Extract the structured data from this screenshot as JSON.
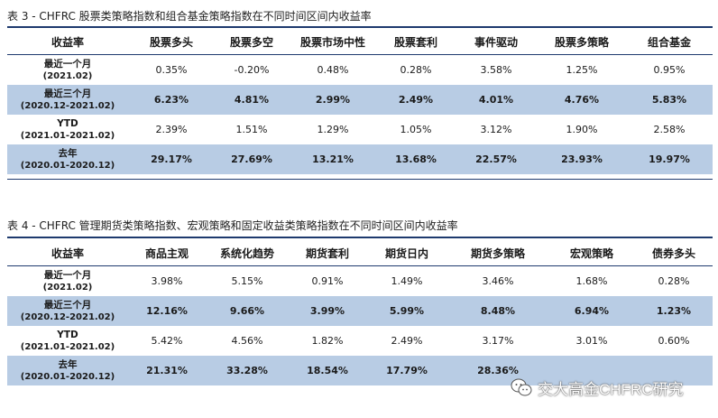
{
  "table1": {
    "caption": "表 3  - CHFRC 股票类策略指数和组合基金策略指数在不同时间区间内收益率",
    "headers": [
      "收益率",
      "股票多头",
      "股票多空",
      "股票市场中性",
      "股票套利",
      "事件驱动",
      "股票多策略",
      "组合基金"
    ],
    "rows": [
      {
        "label": "最近一个月",
        "sub": "(2021.02)",
        "values": [
          "0.35%",
          "-0.20%",
          "0.48%",
          "0.28%",
          "3.58%",
          "1.25%",
          "0.95%"
        ]
      },
      {
        "label": "最近三个月",
        "sub": "(2020.12-2021.02)",
        "values": [
          "6.23%",
          "4.81%",
          "2.99%",
          "2.49%",
          "4.01%",
          "4.76%",
          "5.83%"
        ]
      },
      {
        "label": "YTD",
        "sub": "(2021.01-2021.02)",
        "values": [
          "2.39%",
          "1.51%",
          "1.29%",
          "1.05%",
          "3.12%",
          "1.90%",
          "2.58%"
        ]
      },
      {
        "label": "去年",
        "sub": "(2020.01-2020.12)",
        "values": [
          "29.17%",
          "27.69%",
          "13.21%",
          "13.68%",
          "22.57%",
          "23.93%",
          "19.97%"
        ]
      }
    ]
  },
  "table2": {
    "caption": "表 4  -  CHFRC 管理期货类策略指数、宏观策略和固定收益类策略指数在不同时间区间内收益率",
    "headers": [
      "收益率",
      "商品主观",
      "系统化趋势",
      "期货套利",
      "期货日内",
      "期货多策略",
      "宏观策略",
      "债券多头"
    ],
    "rows": [
      {
        "label": "最近一个月",
        "sub": "(2021.02)",
        "values": [
          "3.98%",
          "5.15%",
          "0.91%",
          "1.49%",
          "3.46%",
          "1.68%",
          "0.28%"
        ]
      },
      {
        "label": "最近三个月",
        "sub": "(2020.12-2021.02)",
        "values": [
          "12.16%",
          "9.66%",
          "3.99%",
          "5.99%",
          "8.48%",
          "6.94%",
          "1.23%"
        ]
      },
      {
        "label": "YTD",
        "sub": "(2021.01-2021.02)",
        "values": [
          "5.42%",
          "4.56%",
          "1.82%",
          "2.49%",
          "3.17%",
          "3.01%",
          "0.60%"
        ]
      },
      {
        "label": "去年",
        "sub": "(2020.01-2020.12)",
        "values": [
          "21.31%",
          "33.28%",
          "18.54%",
          "17.79%",
          "28.36%",
          "",
          ""
        ]
      }
    ]
  },
  "watermark": {
    "text": "交大高金CHFRC研究",
    "icon": "wechat-icon"
  },
  "colors": {
    "rule": "#1e3a6e",
    "shade": "#b8cce4"
  }
}
